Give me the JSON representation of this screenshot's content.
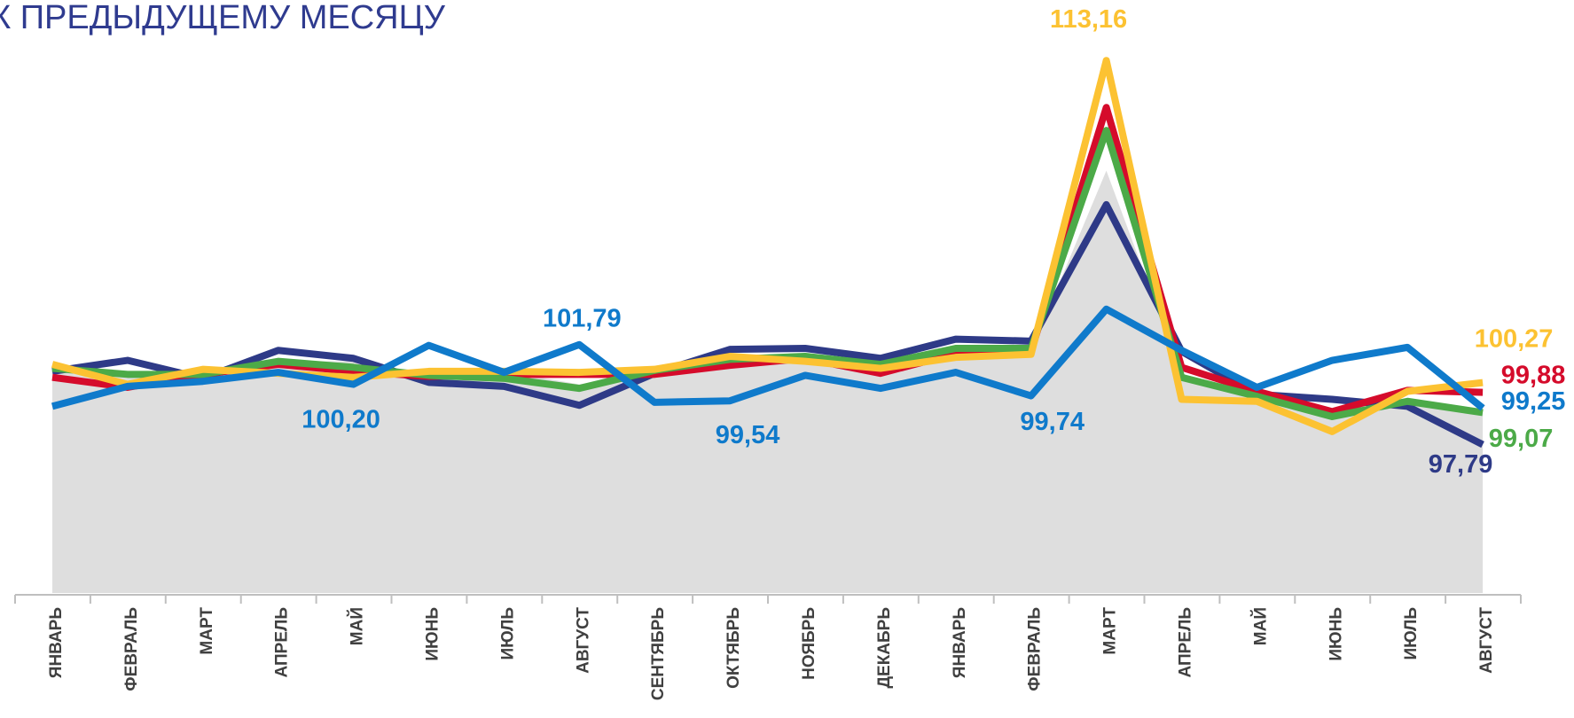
{
  "chart_data": {
    "type": "line",
    "title": "К ПРЕДЫДУЩЕМУ МЕСЯЦУ",
    "categories": [
      "ЯНВАРЬ",
      "ФЕВРАЛЬ",
      "МАРТ",
      "АПРЕЛЬ",
      "МАЙ",
      "ИЮНЬ",
      "ИЮЛЬ",
      "АВГУСТ",
      "СЕНТЯБРЬ",
      "ОКТЯБРЬ",
      "НОЯБРЬ",
      "ДЕКАБРЬ",
      "ЯНВАРЬ",
      "ФЕВРАЛЬ",
      "МАРТ",
      "АПРЕЛЬ",
      "МАЙ",
      "ИЮНЬ",
      "ИЮЛЬ",
      "АВГУСТ"
    ],
    "ylim": [
      91.85,
      115.58
    ],
    "series": [
      {
        "color": "#dedede",
        "fill": true,
        "values": [
          100.88,
          100.48,
          100.48,
          101.12,
          101.12,
          100.56,
          100.72,
          100.2,
          100.72,
          101.28,
          101.4,
          101.08,
          101.56,
          101.56,
          108.75,
          100.64,
          99.68,
          99.03,
          99.6,
          99.03
        ]
      },
      {
        "color": "#2e3a87",
        "values": [
          100.72,
          101.16,
          100.44,
          101.56,
          101.24,
          100.28,
          100.12,
          99.36,
          100.64,
          101.6,
          101.64,
          101.24,
          102.01,
          101.93,
          107.39,
          101.52,
          99.8,
          99.6,
          99.32,
          97.79
        ],
        "value_labels": [
          null,
          null,
          null,
          null,
          null,
          null,
          null,
          null,
          null,
          null,
          null,
          null,
          null,
          null,
          null,
          null,
          null,
          null,
          null,
          "97,79"
        ]
      },
      {
        "color": "#d50b2b",
        "values": [
          100.48,
          100.08,
          100.6,
          101.0,
          100.72,
          100.52,
          100.6,
          100.6,
          100.6,
          100.96,
          101.24,
          100.64,
          101.44,
          101.52,
          111.28,
          100.88,
          99.92,
          99.11,
          99.96,
          99.88
        ],
        "value_labels": [
          null,
          null,
          null,
          null,
          null,
          null,
          null,
          null,
          null,
          null,
          null,
          null,
          null,
          null,
          null,
          null,
          null,
          null,
          null,
          "99,88"
        ]
      },
      {
        "color": "#4caa48",
        "values": [
          100.84,
          100.6,
          100.6,
          101.12,
          100.88,
          100.56,
          100.44,
          100.04,
          100.76,
          101.2,
          101.32,
          101.0,
          101.64,
          101.64,
          110.36,
          100.48,
          99.72,
          98.91,
          99.52,
          99.07
        ],
        "value_labels": [
          null,
          null,
          null,
          null,
          null,
          null,
          null,
          null,
          null,
          null,
          null,
          null,
          null,
          null,
          null,
          null,
          null,
          null,
          null,
          "99,07"
        ]
      },
      {
        "color": "#fcc232",
        "values": [
          101.0,
          100.2,
          100.8,
          100.64,
          100.48,
          100.72,
          100.72,
          100.68,
          100.8,
          101.32,
          101.12,
          100.84,
          101.28,
          101.4,
          113.16,
          99.6,
          99.52,
          98.31,
          99.92,
          100.27
        ],
        "value_labels": [
          null,
          null,
          null,
          null,
          null,
          null,
          null,
          null,
          null,
          null,
          null,
          null,
          null,
          null,
          "113,16",
          null,
          null,
          null,
          null,
          "100,27"
        ]
      },
      {
        "color": "#0f7acb",
        "values": [
          99.32,
          100.12,
          100.32,
          100.68,
          100.2,
          101.76,
          100.68,
          101.79,
          99.48,
          99.54,
          100.56,
          100.04,
          100.68,
          99.74,
          103.21,
          101.56,
          100.08,
          101.16,
          101.68,
          99.25
        ],
        "value_labels": [
          null,
          null,
          null,
          null,
          "100,20",
          null,
          null,
          "101,79",
          null,
          "99,54",
          null,
          null,
          null,
          "99,74",
          null,
          null,
          null,
          null,
          null,
          "99,25"
        ]
      }
    ]
  }
}
